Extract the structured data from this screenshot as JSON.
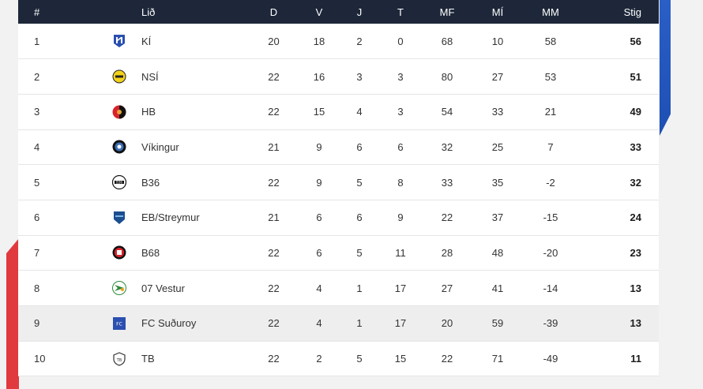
{
  "headers": {
    "pos": "#",
    "team": "Lið",
    "played": "D",
    "won": "V",
    "drawn": "J",
    "lost": "T",
    "gf": "MF",
    "ga": "MÍ",
    "gd": "MM",
    "pts": "Stig"
  },
  "rows": [
    {
      "pos": "1",
      "team": "KÍ",
      "logo": "ki-crest-icon",
      "played": "20",
      "won": "18",
      "drawn": "2",
      "lost": "0",
      "gf": "68",
      "ga": "10",
      "gd": "58",
      "pts": "56"
    },
    {
      "pos": "2",
      "team": "NSÍ",
      "logo": "nsi-crest-icon",
      "played": "22",
      "won": "16",
      "drawn": "3",
      "lost": "3",
      "gf": "80",
      "ga": "27",
      "gd": "53",
      "pts": "51"
    },
    {
      "pos": "3",
      "team": "HB",
      "logo": "hb-crest-icon",
      "played": "22",
      "won": "15",
      "drawn": "4",
      "lost": "3",
      "gf": "54",
      "ga": "33",
      "gd": "21",
      "pts": "49"
    },
    {
      "pos": "4",
      "team": "Víkingur",
      "logo": "vikingur-crest-icon",
      "played": "21",
      "won": "9",
      "drawn": "6",
      "lost": "6",
      "gf": "32",
      "ga": "25",
      "gd": "7",
      "pts": "33"
    },
    {
      "pos": "5",
      "team": "B36",
      "logo": "b36-crest-icon",
      "played": "22",
      "won": "9",
      "drawn": "5",
      "lost": "8",
      "gf": "33",
      "ga": "35",
      "gd": "-2",
      "pts": "32"
    },
    {
      "pos": "6",
      "team": "EB/Streymur",
      "logo": "eb-streymur-crest-icon",
      "played": "21",
      "won": "6",
      "drawn": "6",
      "lost": "9",
      "gf": "22",
      "ga": "37",
      "gd": "-15",
      "pts": "24"
    },
    {
      "pos": "7",
      "team": "B68",
      "logo": "b68-crest-icon",
      "played": "22",
      "won": "6",
      "drawn": "5",
      "lost": "11",
      "gf": "28",
      "ga": "48",
      "gd": "-20",
      "pts": "23"
    },
    {
      "pos": "8",
      "team": "07 Vestur",
      "logo": "07-vestur-crest-icon",
      "played": "22",
      "won": "4",
      "drawn": "1",
      "lost": "17",
      "gf": "27",
      "ga": "41",
      "gd": "-14",
      "pts": "13"
    },
    {
      "pos": "9",
      "team": "FC Suðuroy",
      "logo": "fc-suduroy-crest-icon",
      "played": "22",
      "won": "4",
      "drawn": "1",
      "lost": "17",
      "gf": "20",
      "ga": "59",
      "gd": "-39",
      "pts": "13",
      "highlighted": true
    },
    {
      "pos": "10",
      "team": "TB",
      "logo": "tb-crest-icon",
      "played": "22",
      "won": "2",
      "drawn": "5",
      "lost": "15",
      "gf": "22",
      "ga": "71",
      "gd": "-49",
      "pts": "11"
    }
  ],
  "colors": {
    "header_bg": "#1d2739",
    "top_zone": "#2a5fc7",
    "bottom_zone": "#e03a3f",
    "highlight_row": "#eeeeee"
  }
}
